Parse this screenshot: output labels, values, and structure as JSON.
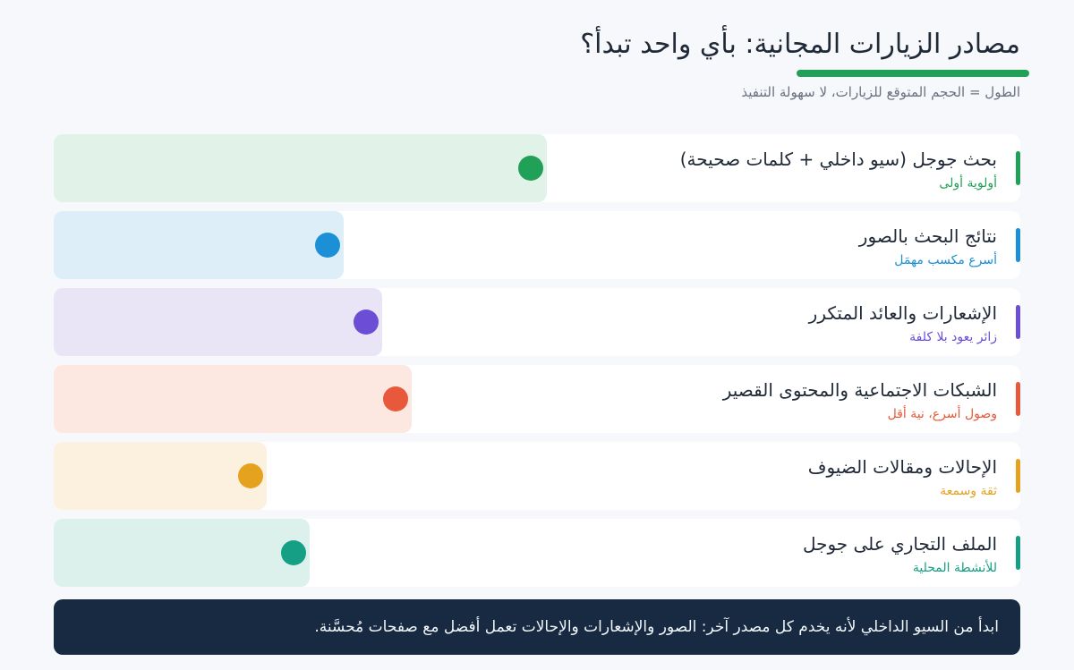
{
  "header": {
    "title": "مصادر الزيارات المجانية: بأي واحد تبدأ؟",
    "subtitle": "الطول = الحجم المتوقع للزيارات، لا سهولة التنفيذ",
    "accent_color": "#21a157"
  },
  "chart_data": {
    "type": "bar",
    "orientation": "horizontal",
    "value_scale": "relative (fraction of full track)",
    "categories": [
      "بحث جوجل (سيو داخلي + كلمات صحيحة)",
      "نتائج البحث بالصور",
      "الإشعارات والعائد المتكرر",
      "الشبكات الاجتماعية والمحتوى القصير",
      "الإحالات ومقالات الضيوف",
      "الملف التجاري على جوجل"
    ],
    "values": [
      0.51,
      0.3,
      0.34,
      0.37,
      0.22,
      0.265
    ],
    "items": [
      {
        "label": "بحث جوجل (سيو داخلي + كلمات صحيحة)",
        "note": "أولوية أولى",
        "color": "#21a157",
        "bar_color": "#e1f2e8",
        "value": 0.51
      },
      {
        "label": "نتائج البحث بالصور",
        "note": "أسرع مكسب مهمَل",
        "color": "#1b90d6",
        "bar_color": "#ddeef9",
        "value": 0.3
      },
      {
        "label": "الإشعارات والعائد المتكرر",
        "note": "زائر يعود بلا كلفة",
        "color": "#6c4ed6",
        "bar_color": "#e9e5f7",
        "value": 0.34
      },
      {
        "label": "الشبكات الاجتماعية والمحتوى القصير",
        "note": "وصول أسرع، نية أقل",
        "color": "#e8583a",
        "bar_color": "#fce7e1",
        "value": 0.37
      },
      {
        "label": "الإحالات ومقالات الضيوف",
        "note": "ثقة وسمعة",
        "color": "#e5a21e",
        "bar_color": "#fcf1df",
        "value": 0.22
      },
      {
        "label": "الملف التجاري على جوجل",
        "note": "للأنشطة المحلية",
        "color": "#15a085",
        "bar_color": "#ddf1ec",
        "value": 0.265
      }
    ]
  },
  "footer": {
    "text": "ابدأ من السيو الداخلي لأنه يخدم كل مصدر آخر: الصور والإشعارات والإحالات تعمل أفضل مع صفحات مُحسَّنة."
  }
}
